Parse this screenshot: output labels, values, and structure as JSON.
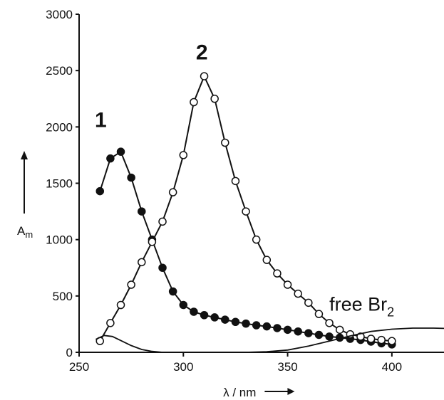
{
  "chart_data": {
    "type": "line",
    "xlabel": "λ / nm",
    "ylabel_main": "A",
    "ylabel_sub": "m",
    "xlim": [
      250,
      425
    ],
    "ylim": [
      0,
      3000
    ],
    "x_ticks": [
      250,
      300,
      350,
      400
    ],
    "x_tick_labels": [
      "250",
      "300",
      "350",
      "400"
    ],
    "y_ticks": [
      0,
      500,
      1000,
      1500,
      2000,
      2500,
      3000
    ],
    "y_tick_labels": [
      "0",
      "500",
      "1000",
      "1500",
      "2000",
      "2500",
      "3000"
    ],
    "series": [
      {
        "name": "1",
        "marker": "filled",
        "x": [
          260,
          265,
          270,
          275,
          280,
          285,
          290,
          295,
          300,
          305,
          310,
          315,
          320,
          325,
          330,
          335,
          340,
          345,
          350,
          355,
          360,
          365,
          370,
          375,
          380,
          385,
          390,
          395,
          400
        ],
        "y": [
          1430,
          1720,
          1780,
          1550,
          1250,
          1000,
          750,
          540,
          420,
          360,
          330,
          310,
          290,
          270,
          255,
          240,
          230,
          215,
          200,
          185,
          170,
          155,
          140,
          130,
          120,
          110,
          95,
          80,
          70
        ]
      },
      {
        "name": "2",
        "marker": "open",
        "x": [
          260,
          265,
          270,
          275,
          280,
          285,
          290,
          295,
          300,
          305,
          310,
          315,
          320,
          325,
          330,
          335,
          340,
          345,
          350,
          355,
          360,
          365,
          370,
          375,
          380,
          385,
          390,
          395,
          400
        ],
        "y": [
          100,
          260,
          420,
          600,
          800,
          980,
          1160,
          1420,
          1750,
          2220,
          2450,
          2250,
          1860,
          1520,
          1250,
          1000,
          820,
          700,
          600,
          520,
          440,
          340,
          260,
          200,
          160,
          140,
          120,
          110,
          100
        ]
      },
      {
        "name": "free Br2",
        "marker": "none",
        "x": [
          258,
          262,
          266,
          270,
          275,
          280,
          285,
          290,
          300,
          310,
          320,
          330,
          340,
          350,
          360,
          370,
          380,
          390,
          400,
          410,
          420,
          425
        ],
        "y": [
          115,
          150,
          140,
          105,
          60,
          25,
          8,
          0,
          0,
          0,
          0,
          0,
          5,
          20,
          55,
          100,
          145,
          185,
          205,
          215,
          215,
          212
        ]
      }
    ],
    "annotations": [
      {
        "text": "1",
        "x": 257.5,
        "y": 2000
      },
      {
        "text": "2",
        "x": 306,
        "y": 2600
      },
      {
        "text": "free Br",
        "sub": "2",
        "x": 370,
        "y": 370
      }
    ]
  }
}
